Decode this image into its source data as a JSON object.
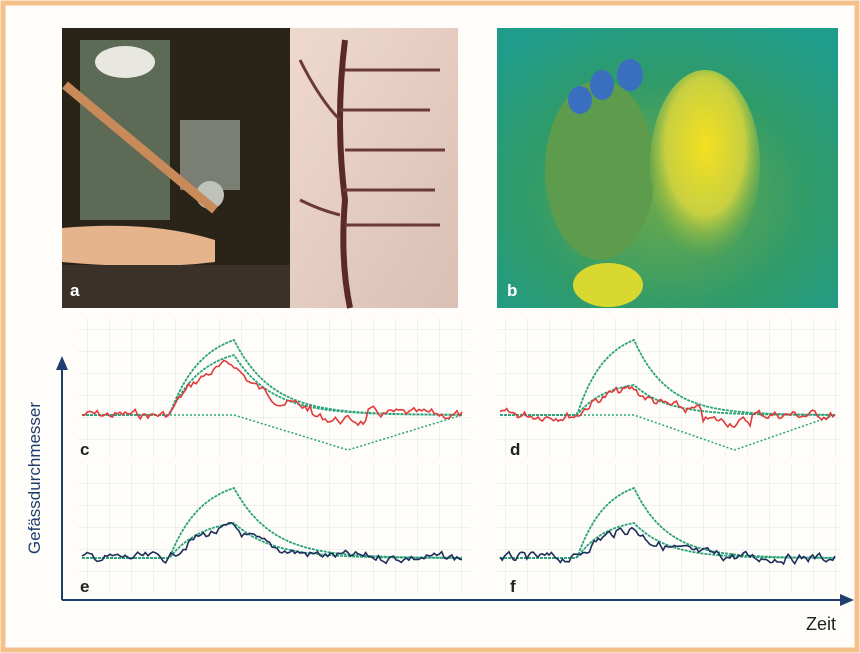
{
  "panels": {
    "a": "a",
    "b": "b",
    "c": "c",
    "d": "d",
    "e": "e",
    "f": "f"
  },
  "axes": {
    "y_label": "Gefässdurchmesser",
    "x_label": "Zeit"
  }
}
